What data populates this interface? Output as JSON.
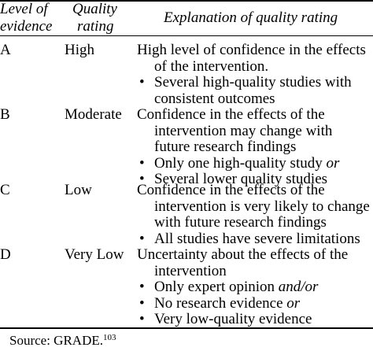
{
  "header": {
    "level_line1": "Level of",
    "level_line2": "evidence",
    "rating_line1": "Quality",
    "rating_line2": "rating",
    "explanation": "Explanation of quality rating"
  },
  "rows": [
    {
      "level": "A",
      "rating": "High",
      "lines": [
        {
          "type": "text",
          "text": "High level of confidence in the effects"
        },
        {
          "type": "cont",
          "text": "of the intervention."
        },
        {
          "type": "bullet",
          "text": "Several high-quality studies with"
        },
        {
          "type": "cont",
          "text": "consistent outcomes"
        }
      ]
    },
    {
      "level": "B",
      "rating": "Moderate",
      "lines": [
        {
          "type": "text",
          "text": "Confidence in the effects of the"
        },
        {
          "type": "cont",
          "text": "intervention may change with"
        },
        {
          "type": "cont",
          "text": "future research findings"
        },
        {
          "type": "bullet",
          "text": "Only one high-quality study ",
          "em": "or"
        },
        {
          "type": "bullet",
          "text": "Several lower quality studies"
        }
      ]
    },
    {
      "level": "C",
      "rating": "Low",
      "lines": [
        {
          "type": "text",
          "text": "Confidence in the effects of the"
        },
        {
          "type": "cont",
          "text": "intervention is very likely to change"
        },
        {
          "type": "cont",
          "text": "with future research findings"
        },
        {
          "type": "bullet",
          "text": "All studies have severe limitations"
        }
      ]
    },
    {
      "level": "D",
      "rating": "Very Low",
      "lines": [
        {
          "type": "text",
          "text": "Uncertainty about the effects of the"
        },
        {
          "type": "cont",
          "text": "intervention"
        },
        {
          "type": "bullet",
          "text": "Only expert opinion ",
          "em": "and/or"
        },
        {
          "type": "bullet",
          "text": "No research evidence ",
          "em": "or"
        },
        {
          "type": "bullet",
          "text": "Very low-quality evidence"
        }
      ]
    }
  ],
  "bullet_glyph": "•",
  "source": {
    "label": "Source: GRADE.",
    "ref": "103"
  }
}
